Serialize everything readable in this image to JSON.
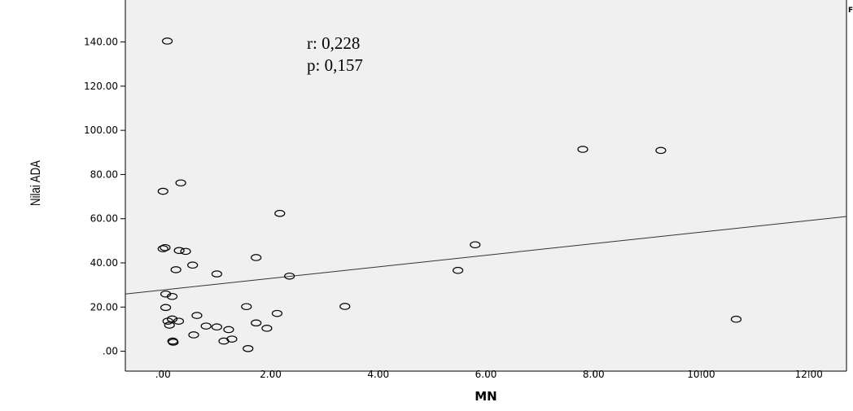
{
  "chart_data": {
    "type": "scatter",
    "title": "",
    "xlabel": "MN",
    "ylabel": "Nilai ADA",
    "xlim": [
      -0.7,
      12.7
    ],
    "ylim": [
      -9,
      159
    ],
    "x_ticks": [
      0,
      2,
      4,
      6,
      8,
      10,
      12
    ],
    "x_tick_labels": [
      ".00",
      "2.00",
      "4.00",
      "6.00",
      "8.00",
      "10.00",
      "12.00"
    ],
    "y_ticks": [
      0,
      20,
      40,
      60,
      80,
      100,
      120,
      140
    ],
    "y_tick_labels": [
      ".00",
      "20.00",
      "40.00",
      "60.00",
      "80.00",
      "100.00",
      "120.00",
      "140.00"
    ],
    "grid": false,
    "background_color": "#f0f0f0",
    "marker_color": "#000000",
    "annotations": [
      "r: 0,228",
      "p: 0,157"
    ],
    "corner_label": "F",
    "fit_line": {
      "type": "linear",
      "x": [
        -0.7,
        12.7
      ],
      "y": [
        25.9,
        61.0
      ]
    },
    "points": [
      {
        "x": 0.08,
        "y": 140.4
      },
      {
        "x": 0.0,
        "y": 72.4
      },
      {
        "x": 0.33,
        "y": 76.2
      },
      {
        "x": 0.0,
        "y": 46.4
      },
      {
        "x": 0.04,
        "y": 46.9
      },
      {
        "x": 0.3,
        "y": 45.6
      },
      {
        "x": 0.42,
        "y": 45.2
      },
      {
        "x": 0.55,
        "y": 39.0
      },
      {
        "x": 0.24,
        "y": 36.9
      },
      {
        "x": 0.05,
        "y": 25.9
      },
      {
        "x": 0.17,
        "y": 24.8
      },
      {
        "x": 0.05,
        "y": 19.8
      },
      {
        "x": 0.09,
        "y": 13.6
      },
      {
        "x": 0.17,
        "y": 14.6
      },
      {
        "x": 0.29,
        "y": 13.6
      },
      {
        "x": 0.12,
        "y": 11.8
      },
      {
        "x": 0.18,
        "y": 4.6
      },
      {
        "x": 0.19,
        "y": 4.1
      },
      {
        "x": 0.63,
        "y": 16.2
      },
      {
        "x": 0.8,
        "y": 11.4
      },
      {
        "x": 0.57,
        "y": 7.4
      },
      {
        "x": 1.0,
        "y": 35.0
      },
      {
        "x": 1.0,
        "y": 11.0
      },
      {
        "x": 1.22,
        "y": 9.8
      },
      {
        "x": 1.13,
        "y": 4.6
      },
      {
        "x": 1.28,
        "y": 5.5
      },
      {
        "x": 1.55,
        "y": 20.2
      },
      {
        "x": 1.73,
        "y": 42.4
      },
      {
        "x": 1.73,
        "y": 12.8
      },
      {
        "x": 1.58,
        "y": 1.2
      },
      {
        "x": 1.93,
        "y": 10.4
      },
      {
        "x": 2.12,
        "y": 17.1
      },
      {
        "x": 2.17,
        "y": 62.4
      },
      {
        "x": 2.35,
        "y": 34.0
      },
      {
        "x": 3.38,
        "y": 20.3
      },
      {
        "x": 5.48,
        "y": 36.6
      },
      {
        "x": 5.8,
        "y": 48.2
      },
      {
        "x": 7.8,
        "y": 91.4
      },
      {
        "x": 9.25,
        "y": 90.9
      },
      {
        "x": 10.65,
        "y": 14.5
      }
    ]
  }
}
